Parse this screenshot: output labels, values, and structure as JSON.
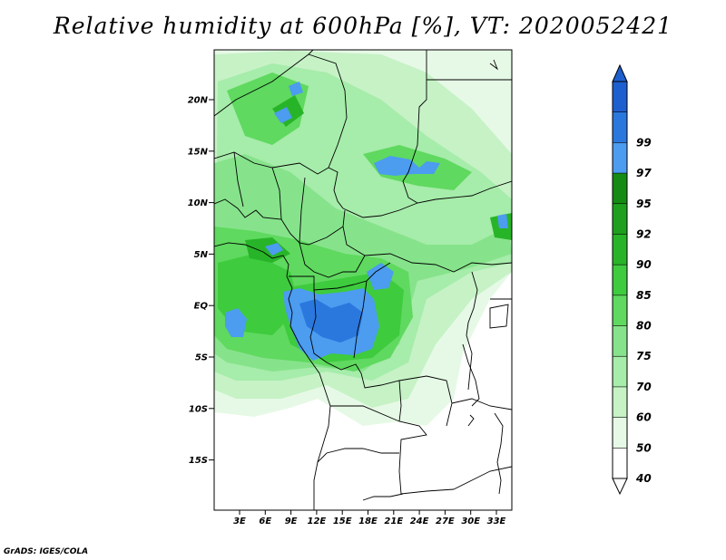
{
  "title": "Relative humidity at 600hPa [%], VT: 2020052421",
  "credit": "GrADS: IGES/COLA",
  "map": {
    "lat_labels": [
      "20N",
      "15N",
      "10N",
      "5N",
      "EQ",
      "5S",
      "10S",
      "15S"
    ],
    "lon_labels": [
      "3E",
      "6E",
      "9E",
      "12E",
      "15E",
      "18E",
      "21E",
      "24E",
      "27E",
      "30E",
      "33E"
    ]
  },
  "colorbar": {
    "levels": [
      40,
      50,
      60,
      70,
      75,
      80,
      85,
      90,
      92,
      95,
      97,
      99
    ],
    "labels": [
      "40",
      "50",
      "60",
      "70",
      "75",
      "80",
      "85",
      "90",
      "92",
      "95",
      "97",
      "99"
    ],
    "colors": [
      "#ffffff",
      "#e6f9e6",
      "#c6f2c6",
      "#a6ecaa",
      "#86e38b",
      "#5fd95f",
      "#3ecb3e",
      "#28b428",
      "#1ea01e",
      "#148c14",
      "#4c9cf0",
      "#2a78de",
      "#1e5fcf"
    ]
  }
}
